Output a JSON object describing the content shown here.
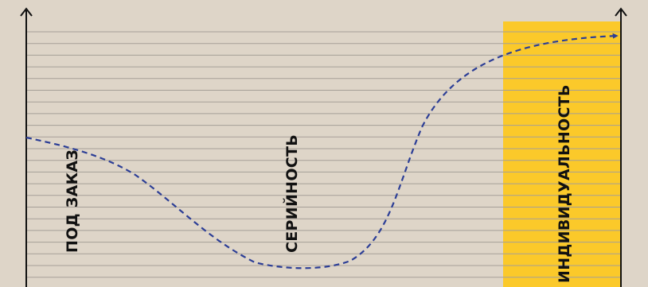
{
  "diagram": {
    "labels": {
      "custom": "ПОД ЗАКАЗ",
      "serial": "СЕРИЙНОСТЬ",
      "individual": "ИНДИВИДУАЛЬНОСТЬ"
    },
    "colors": {
      "background": "#ded5c8",
      "highlight": "#fbc92a",
      "grid_line": "#a59f97",
      "axis": "#111111",
      "curve": "#2c3e96",
      "text": "#111111"
    }
  }
}
